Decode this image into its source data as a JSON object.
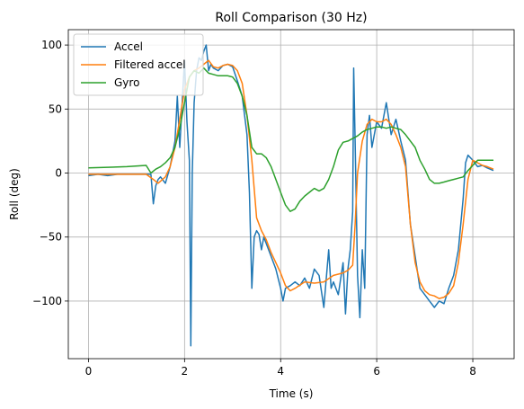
{
  "chart_data": {
    "type": "line",
    "title": "Roll Comparison (30 Hz)",
    "xlabel": "Time (s)",
    "ylabel": "Roll (deg)",
    "xlim": [
      -0.42,
      8.86
    ],
    "ylim": [
      -145,
      112
    ],
    "xticks": [
      0,
      2,
      4,
      6,
      8
    ],
    "yticks": [
      -100,
      -50,
      0,
      50,
      100
    ],
    "xtick_labels": [
      "0",
      "2",
      "4",
      "6",
      "8"
    ],
    "ytick_labels": [
      "−100",
      "−50",
      "0",
      "50",
      "100"
    ],
    "grid": true,
    "legend_position": "top-left",
    "series": [
      {
        "name": "Accel",
        "color": "#1f77b4",
        "x": [
          0.0,
          0.2,
          0.4,
          0.6,
          0.8,
          1.0,
          1.2,
          1.3,
          1.35,
          1.4,
          1.45,
          1.5,
          1.6,
          1.7,
          1.8,
          1.85,
          1.9,
          1.95,
          2.0,
          2.05,
          2.1,
          2.13,
          2.16,
          2.2,
          2.25,
          2.3,
          2.35,
          2.4,
          2.45,
          2.5,
          2.55,
          2.6,
          2.7,
          2.8,
          2.9,
          3.0,
          3.1,
          3.2,
          3.3,
          3.35,
          3.4,
          3.45,
          3.5,
          3.55,
          3.6,
          3.65,
          3.7,
          3.8,
          3.9,
          4.0,
          4.05,
          4.1,
          4.2,
          4.3,
          4.4,
          4.5,
          4.6,
          4.7,
          4.8,
          4.9,
          5.0,
          5.05,
          5.1,
          5.2,
          5.3,
          5.35,
          5.4,
          5.45,
          5.5,
          5.52,
          5.55,
          5.6,
          5.65,
          5.7,
          5.75,
          5.8,
          5.85,
          5.9,
          6.0,
          6.1,
          6.2,
          6.3,
          6.4,
          6.5,
          6.6,
          6.7,
          6.8,
          6.9,
          7.0,
          7.1,
          7.2,
          7.3,
          7.4,
          7.5,
          7.6,
          7.7,
          7.8,
          7.85,
          7.9,
          8.0,
          8.1,
          8.2,
          8.3,
          8.43
        ],
        "y": [
          -2,
          -1,
          -2,
          -1,
          -1,
          -1,
          -1,
          -1,
          -24,
          -10,
          -5,
          -3,
          -8,
          5,
          25,
          60,
          20,
          55,
          88,
          40,
          10,
          -135,
          0,
          55,
          80,
          90,
          88,
          95,
          100,
          80,
          85,
          82,
          80,
          84,
          85,
          83,
          72,
          60,
          30,
          -15,
          -90,
          -50,
          -45,
          -48,
          -60,
          -50,
          -55,
          -65,
          -75,
          -90,
          -100,
          -90,
          -88,
          -85,
          -88,
          -82,
          -90,
          -75,
          -80,
          -105,
          -60,
          -90,
          -85,
          -95,
          -70,
          -110,
          -75,
          -60,
          -30,
          82,
          25,
          -80,
          -113,
          -60,
          -90,
          30,
          45,
          20,
          40,
          35,
          55,
          30,
          42,
          25,
          10,
          -40,
          -65,
          -90,
          -95,
          -100,
          -105,
          -100,
          -102,
          -90,
          -80,
          -60,
          -20,
          8,
          14,
          10,
          5,
          6,
          4,
          2
        ]
      },
      {
        "name": "Filtered accel",
        "color": "#ff7f0e",
        "x": [
          0.0,
          0.4,
          0.8,
          1.2,
          1.35,
          1.45,
          1.6,
          1.7,
          1.8,
          1.9,
          2.0,
          2.1,
          2.2,
          2.3,
          2.4,
          2.5,
          2.6,
          2.7,
          2.8,
          2.9,
          3.0,
          3.1,
          3.2,
          3.3,
          3.4,
          3.5,
          3.6,
          3.7,
          3.8,
          3.9,
          4.0,
          4.1,
          4.2,
          4.3,
          4.5,
          4.7,
          4.9,
          5.1,
          5.3,
          5.4,
          5.5,
          5.55,
          5.6,
          5.7,
          5.8,
          5.9,
          6.0,
          6.1,
          6.2,
          6.3,
          6.4,
          6.5,
          6.6,
          6.7,
          6.8,
          6.9,
          7.0,
          7.1,
          7.2,
          7.3,
          7.4,
          7.5,
          7.6,
          7.7,
          7.8,
          7.9,
          8.0,
          8.1,
          8.2,
          8.3,
          8.43
        ],
        "y": [
          -1,
          -1,
          -1,
          -1,
          -5,
          -8,
          -3,
          5,
          20,
          42,
          65,
          75,
          80,
          82,
          85,
          88,
          83,
          82,
          84,
          85,
          84,
          80,
          70,
          45,
          10,
          -35,
          -45,
          -52,
          -62,
          -70,
          -78,
          -88,
          -92,
          -90,
          -85,
          -86,
          -85,
          -80,
          -78,
          -76,
          -72,
          -40,
          0,
          25,
          38,
          42,
          40,
          40,
          42,
          38,
          30,
          20,
          5,
          -40,
          -70,
          -85,
          -92,
          -95,
          -96,
          -98,
          -97,
          -94,
          -88,
          -70,
          -40,
          -5,
          10,
          8,
          6,
          5,
          3
        ]
      },
      {
        "name": "Gyro",
        "color": "#2ca02c",
        "x": [
          0.0,
          0.4,
          0.8,
          1.2,
          1.3,
          1.4,
          1.5,
          1.6,
          1.7,
          1.8,
          1.9,
          2.0,
          2.1,
          2.2,
          2.3,
          2.4,
          2.5,
          2.6,
          2.7,
          2.8,
          2.9,
          3.0,
          3.1,
          3.2,
          3.3,
          3.4,
          3.5,
          3.6,
          3.7,
          3.8,
          3.9,
          4.0,
          4.1,
          4.2,
          4.3,
          4.4,
          4.5,
          4.6,
          4.7,
          4.8,
          4.9,
          5.0,
          5.1,
          5.2,
          5.3,
          5.4,
          5.5,
          5.6,
          5.7,
          5.8,
          5.9,
          6.0,
          6.1,
          6.2,
          6.3,
          6.4,
          6.5,
          6.6,
          6.7,
          6.8,
          6.9,
          7.0,
          7.1,
          7.2,
          7.3,
          7.4,
          7.5,
          7.6,
          7.7,
          7.8,
          7.9,
          8.0,
          8.1,
          8.2,
          8.3,
          8.43
        ],
        "y": [
          4,
          4.5,
          5,
          6,
          0,
          3,
          5,
          8,
          12,
          20,
          35,
          55,
          75,
          80,
          78,
          82,
          78,
          77,
          76,
          76,
          76,
          75,
          70,
          60,
          45,
          20,
          15,
          15,
          12,
          5,
          -5,
          -15,
          -25,
          -30,
          -28,
          -22,
          -18,
          -15,
          -12,
          -14,
          -12,
          -5,
          5,
          18,
          24,
          25,
          27,
          29,
          32,
          34,
          35,
          36,
          36,
          35,
          36,
          35,
          34,
          30,
          25,
          20,
          10,
          3,
          -5,
          -8,
          -8,
          -7,
          -6,
          -5,
          -4,
          -3,
          2,
          6,
          10,
          10,
          10,
          10
        ]
      }
    ]
  }
}
